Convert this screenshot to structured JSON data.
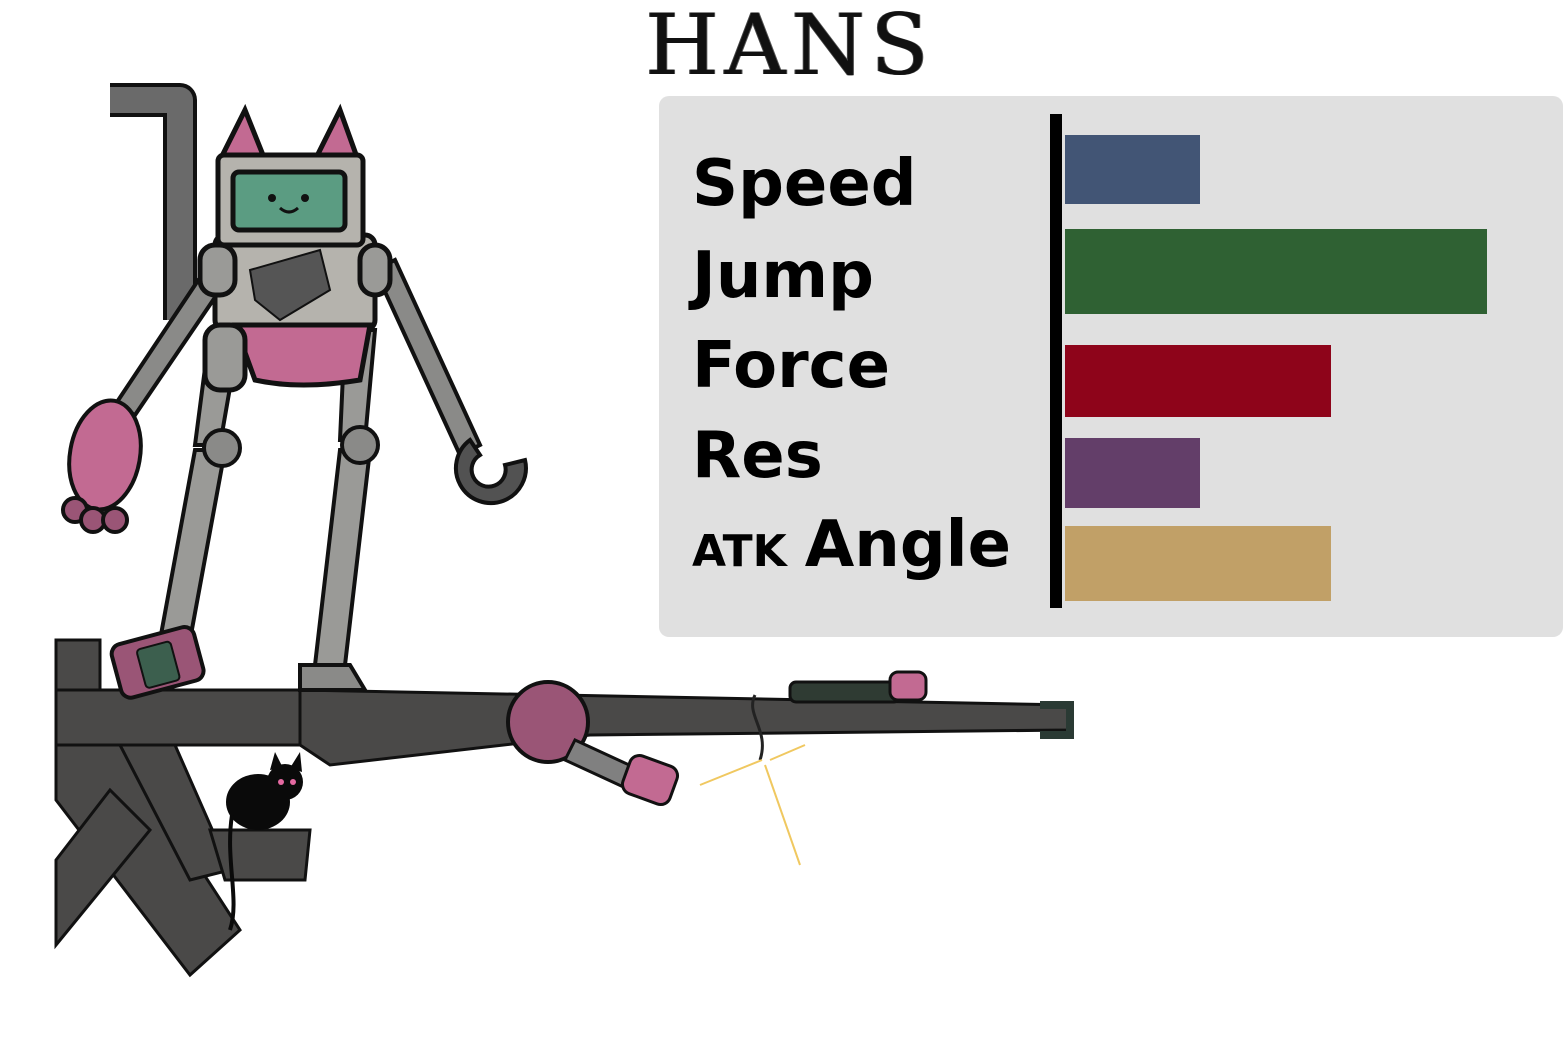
{
  "title": "HANS",
  "stats": [
    {
      "label": "Speed",
      "value": 0.32,
      "color": "#425575"
    },
    {
      "label": "Jump",
      "value": 1.0,
      "color": "#2f6133"
    },
    {
      "label": "Force",
      "value": 0.63,
      "color": "#8e041a"
    },
    {
      "label": "Res",
      "value": 0.32,
      "color": "#633e69"
    },
    {
      "label_prefix": "ATK",
      "label": "Angle",
      "value": 0.63,
      "color": "#c1a067"
    }
  ]
}
